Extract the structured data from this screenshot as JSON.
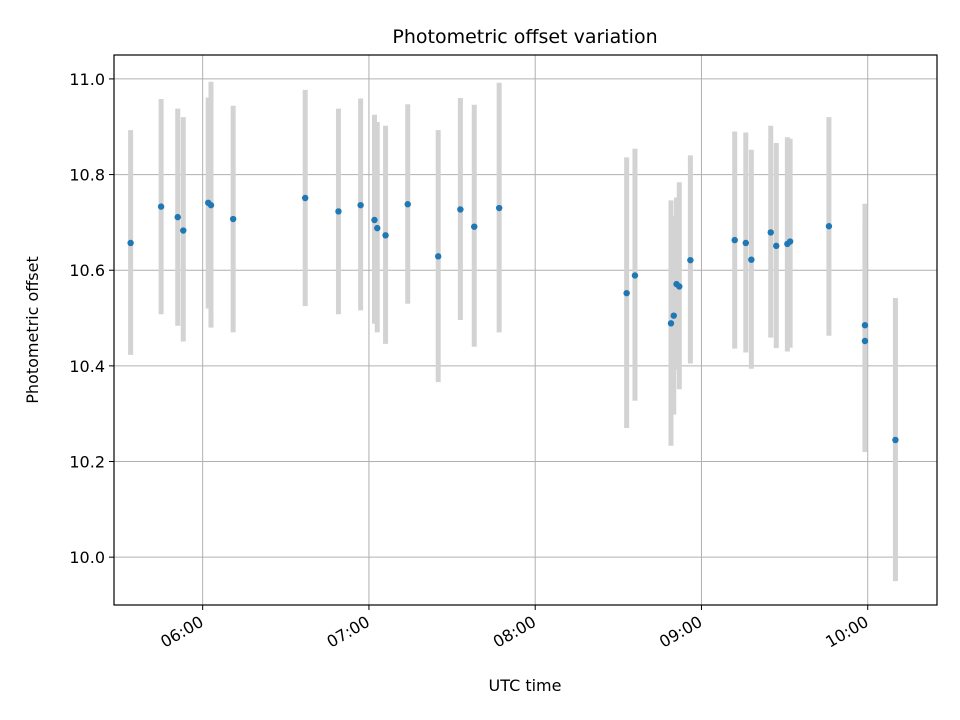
{
  "chart_data": {
    "type": "scatter",
    "title": "Photometric offset variation",
    "xlabel": "UTC time",
    "ylabel": "Photometric offset",
    "x_axis_kind": "time",
    "xlim": [
      "05:28",
      "10:25"
    ],
    "ylim": [
      9.9,
      11.05
    ],
    "grid": true,
    "x_ticks": [
      {
        "time": "06:00",
        "label": "06:00"
      },
      {
        "time": "07:00",
        "label": "07:00"
      },
      {
        "time": "08:00",
        "label": "08:00"
      },
      {
        "time": "09:00",
        "label": "09:00"
      },
      {
        "time": "10:00",
        "label": "10:00"
      }
    ],
    "y_ticks": [
      {
        "value": 10.0,
        "label": "10.0"
      },
      {
        "value": 10.2,
        "label": "10.2"
      },
      {
        "value": 10.4,
        "label": "10.4"
      },
      {
        "value": 10.6,
        "label": "10.6"
      },
      {
        "value": 10.8,
        "label": "10.8"
      },
      {
        "value": 11.0,
        "label": "11.0"
      }
    ],
    "colors": {
      "point": "#1f77b4",
      "errorbar": "#d3d3d3",
      "grid": "#b0b0b0",
      "axis": "#000000"
    },
    "points": [
      {
        "time": "05:34",
        "y": 10.657,
        "y_low": 10.423,
        "y_high": 10.893
      },
      {
        "time": "05:45",
        "y": 10.733,
        "y_low": 10.508,
        "y_high": 10.958
      },
      {
        "time": "05:51",
        "y": 10.711,
        "y_low": 10.484,
        "y_high": 10.938
      },
      {
        "time": "05:53",
        "y": 10.683,
        "y_low": 10.451,
        "y_high": 10.92
      },
      {
        "time": "06:02",
        "y": 10.741,
        "y_low": 10.52,
        "y_high": 10.961
      },
      {
        "time": "06:03",
        "y": 10.736,
        "y_low": 10.48,
        "y_high": 10.994
      },
      {
        "time": "06:11",
        "y": 10.707,
        "y_low": 10.47,
        "y_high": 10.944
      },
      {
        "time": "06:37",
        "y": 10.751,
        "y_low": 10.525,
        "y_high": 10.977
      },
      {
        "time": "06:49",
        "y": 10.723,
        "y_low": 10.508,
        "y_high": 10.938
      },
      {
        "time": "06:57",
        "y": 10.736,
        "y_low": 10.516,
        "y_high": 10.959
      },
      {
        "time": "07:02",
        "y": 10.705,
        "y_low": 10.488,
        "y_high": 10.925
      },
      {
        "time": "07:03",
        "y": 10.688,
        "y_low": 10.47,
        "y_high": 10.91
      },
      {
        "time": "07:06",
        "y": 10.673,
        "y_low": 10.446,
        "y_high": 10.902
      },
      {
        "time": "07:14",
        "y": 10.738,
        "y_low": 10.53,
        "y_high": 10.947
      },
      {
        "time": "07:25",
        "y": 10.629,
        "y_low": 10.366,
        "y_high": 10.893
      },
      {
        "time": "07:33",
        "y": 10.727,
        "y_low": 10.496,
        "y_high": 10.96
      },
      {
        "time": "07:38",
        "y": 10.691,
        "y_low": 10.44,
        "y_high": 10.946
      },
      {
        "time": "07:47",
        "y": 10.73,
        "y_low": 10.47,
        "y_high": 10.992
      },
      {
        "time": "08:33",
        "y": 10.552,
        "y_low": 10.27,
        "y_high": 10.836
      },
      {
        "time": "08:36",
        "y": 10.589,
        "y_low": 10.327,
        "y_high": 10.854
      },
      {
        "time": "08:49",
        "y": 10.489,
        "y_low": 10.233,
        "y_high": 10.746
      },
      {
        "time": "08:50",
        "y": 10.505,
        "y_low": 10.298,
        "y_high": 10.713
      },
      {
        "time": "08:51",
        "y": 10.571,
        "y_low": 10.392,
        "y_high": 10.752
      },
      {
        "time": "08:52",
        "y": 10.566,
        "y_low": 10.351,
        "y_high": 10.784
      },
      {
        "time": "08:56",
        "y": 10.621,
        "y_low": 10.405,
        "y_high": 10.84
      },
      {
        "time": "09:12",
        "y": 10.663,
        "y_low": 10.436,
        "y_high": 10.89
      },
      {
        "time": "09:16",
        "y": 10.657,
        "y_low": 10.428,
        "y_high": 10.888
      },
      {
        "time": "09:18",
        "y": 10.622,
        "y_low": 10.394,
        "y_high": 10.852
      },
      {
        "time": "09:25",
        "y": 10.679,
        "y_low": 10.459,
        "y_high": 10.902
      },
      {
        "time": "09:27",
        "y": 10.651,
        "y_low": 10.437,
        "y_high": 10.866
      },
      {
        "time": "09:31",
        "y": 10.655,
        "y_low": 10.43,
        "y_high": 10.878
      },
      {
        "time": "09:32",
        "y": 10.66,
        "y_low": 10.438,
        "y_high": 10.875
      },
      {
        "time": "09:46",
        "y": 10.692,
        "y_low": 10.463,
        "y_high": 10.92
      },
      {
        "time": "09:59",
        "y": 10.485,
        "y_low": 10.233,
        "y_high": 10.739
      },
      {
        "time": "09:59",
        "y": 10.452,
        "y_low": 10.22,
        "y_high": 10.688
      },
      {
        "time": "10:10",
        "y": 10.245,
        "y_low": 9.95,
        "y_high": 10.542
      }
    ]
  }
}
